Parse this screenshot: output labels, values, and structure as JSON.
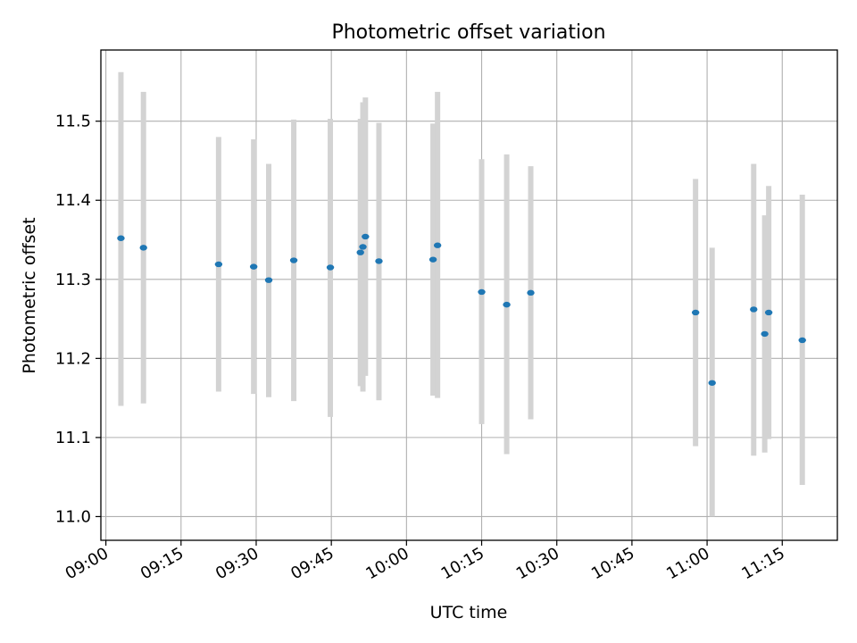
{
  "chart_data": {
    "type": "scatter",
    "title": "Photometric offset variation",
    "xlabel": "UTC time",
    "ylabel": "Photometric offset",
    "x_axis_type": "time",
    "xlim": [
      "08:59",
      "11:26"
    ],
    "ylim": [
      10.97,
      11.59
    ],
    "grid": true,
    "x_ticks": [
      "09:00",
      "09:15",
      "09:30",
      "09:45",
      "10:00",
      "10:15",
      "10:30",
      "10:45",
      "11:00",
      "11:15"
    ],
    "y_ticks": [
      "11.0",
      "11.1",
      "11.2",
      "11.3",
      "11.4",
      "11.5"
    ],
    "colors": {
      "point": "#1f77b4",
      "errorbar": "#d3d3d3",
      "grid": "#b0b0b0"
    },
    "series": [
      {
        "points": [
          {
            "x": "09:03",
            "y": 11.352,
            "lo": 11.14,
            "hi": 11.562
          },
          {
            "x": "09:07.5",
            "y": 11.34,
            "lo": 11.143,
            "hi": 11.537
          },
          {
            "x": "09:22.5",
            "y": 11.319,
            "lo": 11.158,
            "hi": 11.48
          },
          {
            "x": "09:29.5",
            "y": 11.316,
            "lo": 11.155,
            "hi": 11.477
          },
          {
            "x": "09:32.5",
            "y": 11.299,
            "lo": 11.151,
            "hi": 11.446
          },
          {
            "x": "09:37.5",
            "y": 11.324,
            "lo": 11.146,
            "hi": 11.502
          },
          {
            "x": "09:44.8",
            "y": 11.315,
            "lo": 11.126,
            "hi": 11.503
          },
          {
            "x": "09:50.8",
            "y": 11.334,
            "lo": 11.165,
            "hi": 11.503
          },
          {
            "x": "09:51.3",
            "y": 11.341,
            "lo": 11.158,
            "hi": 11.524
          },
          {
            "x": "09:51.8",
            "y": 11.354,
            "lo": 11.178,
            "hi": 11.53
          },
          {
            "x": "09:54.5",
            "y": 11.323,
            "lo": 11.147,
            "hi": 11.498
          },
          {
            "x": "10:05.3",
            "y": 11.325,
            "lo": 11.153,
            "hi": 11.497
          },
          {
            "x": "10:06.2",
            "y": 11.343,
            "lo": 11.15,
            "hi": 11.537
          },
          {
            "x": "10:15",
            "y": 11.284,
            "lo": 11.117,
            "hi": 11.452
          },
          {
            "x": "10:20",
            "y": 11.268,
            "lo": 11.079,
            "hi": 11.458
          },
          {
            "x": "10:24.8",
            "y": 11.283,
            "lo": 11.123,
            "hi": 11.443
          },
          {
            "x": "10:57.7",
            "y": 11.258,
            "lo": 11.089,
            "hi": 11.427
          },
          {
            "x": "11:01",
            "y": 11.169,
            "lo": 11.0,
            "hi": 11.34
          },
          {
            "x": "11:09.3",
            "y": 11.262,
            "lo": 11.077,
            "hi": 11.446
          },
          {
            "x": "11:11.5",
            "y": 11.231,
            "lo": 11.081,
            "hi": 11.381
          },
          {
            "x": "11:12.3",
            "y": 11.258,
            "lo": 11.098,
            "hi": 11.418
          },
          {
            "x": "11:19",
            "y": 11.223,
            "lo": 11.04,
            "hi": 11.407
          }
        ]
      }
    ]
  }
}
